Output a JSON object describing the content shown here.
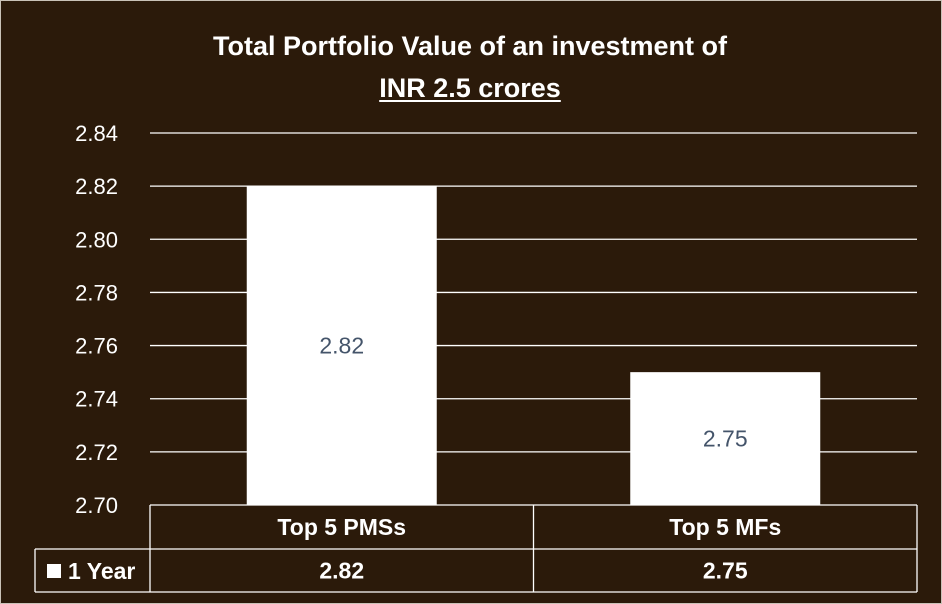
{
  "chart_data": {
    "type": "bar",
    "title_line1": "Total Portfolio Value of an investment of",
    "title_line2": "INR 2.5 crores",
    "categories": [
      "Top 5 PMSs",
      "Top 5 MFs"
    ],
    "series": [
      {
        "name": "1 Year",
        "values": [
          2.82,
          2.75
        ],
        "color": "#ffffff"
      }
    ],
    "data_labels": [
      "2.82",
      "2.75"
    ],
    "table_values": [
      "2.82",
      "2.75"
    ],
    "yticks": [
      "2.70",
      "2.72",
      "2.74",
      "2.76",
      "2.78",
      "2.80",
      "2.82",
      "2.84"
    ],
    "ylim": [
      2.7,
      2.84
    ],
    "grid": true,
    "legend_placement": "data-table",
    "colors": {
      "background": "#2b1a0a",
      "bar": "#ffffff",
      "grid": "#ffffff",
      "data_label": "#44546a"
    }
  }
}
